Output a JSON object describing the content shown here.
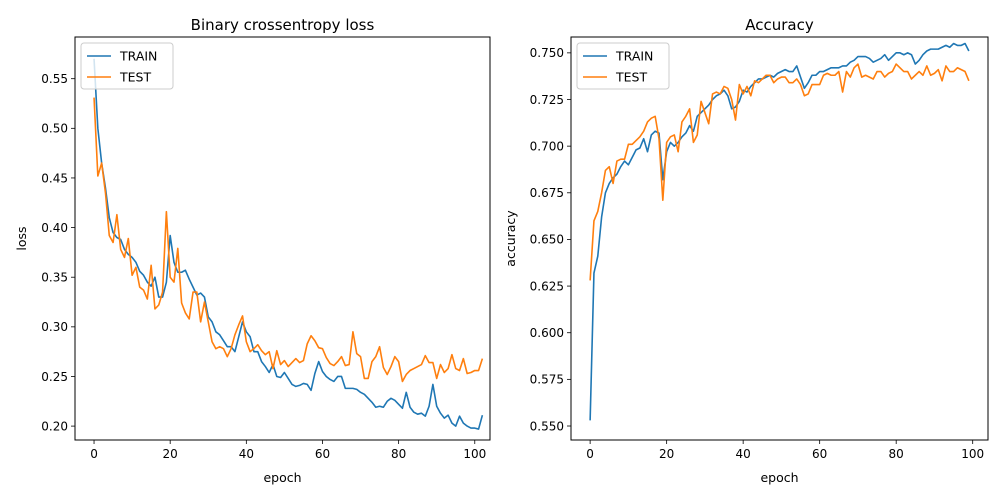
{
  "chart_data": [
    {
      "type": "line",
      "title": "Binary crossentropy loss",
      "xlabel": "epoch",
      "ylabel": "loss",
      "xlim": [
        -5,
        104
      ],
      "ylim": [
        0.186,
        0.592
      ],
      "xticks": [
        0,
        20,
        40,
        60,
        80,
        100
      ],
      "yticks": [
        0.2,
        0.25,
        0.3,
        0.35,
        0.4,
        0.45,
        0.5,
        0.55
      ],
      "ytick_labels": [
        "0.20",
        "0.25",
        "0.30",
        "0.35",
        "0.40",
        "0.45",
        "0.50",
        "0.55"
      ],
      "legend_position": "upper-left",
      "series": [
        {
          "name": "TRAIN",
          "color": "#1f77b4",
          "values": [
            0.57,
            0.5,
            0.465,
            0.44,
            0.41,
            0.395,
            0.39,
            0.388,
            0.378,
            0.373,
            0.37,
            0.365,
            0.356,
            0.352,
            0.345,
            0.341,
            0.35,
            0.33,
            0.33,
            0.345,
            0.392,
            0.365,
            0.355,
            0.355,
            0.357,
            0.348,
            0.34,
            0.332,
            0.334,
            0.33,
            0.31,
            0.305,
            0.295,
            0.292,
            0.286,
            0.28,
            0.28,
            0.275,
            0.29,
            0.305,
            0.295,
            0.29,
            0.275,
            0.275,
            0.265,
            0.26,
            0.254,
            0.262,
            0.25,
            0.249,
            0.254,
            0.248,
            0.242,
            0.24,
            0.241,
            0.243,
            0.242,
            0.236,
            0.253,
            0.265,
            0.255,
            0.25,
            0.247,
            0.245,
            0.25,
            0.25,
            0.238,
            0.238,
            0.238,
            0.237,
            0.234,
            0.232,
            0.228,
            0.224,
            0.219,
            0.22,
            0.219,
            0.225,
            0.228,
            0.226,
            0.222,
            0.218,
            0.234,
            0.219,
            0.214,
            0.212,
            0.213,
            0.21,
            0.22,
            0.242,
            0.22,
            0.213,
            0.208,
            0.211,
            0.203,
            0.2,
            0.21,
            0.203,
            0.2,
            0.198,
            0.198,
            0.197,
            0.211
          ]
        },
        {
          "name": "TEST",
          "color": "#ff7f0e",
          "values": [
            0.531,
            0.452,
            0.465,
            0.435,
            0.392,
            0.385,
            0.413,
            0.378,
            0.37,
            0.389,
            0.352,
            0.36,
            0.34,
            0.337,
            0.328,
            0.362,
            0.318,
            0.322,
            0.335,
            0.416,
            0.35,
            0.345,
            0.379,
            0.324,
            0.314,
            0.308,
            0.335,
            0.335,
            0.305,
            0.325,
            0.305,
            0.285,
            0.278,
            0.28,
            0.278,
            0.27,
            0.278,
            0.292,
            0.302,
            0.311,
            0.285,
            0.275,
            0.278,
            0.282,
            0.276,
            0.272,
            0.275,
            0.258,
            0.276,
            0.262,
            0.266,
            0.26,
            0.264,
            0.268,
            0.264,
            0.266,
            0.283,
            0.291,
            0.286,
            0.279,
            0.278,
            0.269,
            0.263,
            0.261,
            0.265,
            0.27,
            0.261,
            0.262,
            0.295,
            0.273,
            0.27,
            0.248,
            0.248,
            0.265,
            0.27,
            0.28,
            0.259,
            0.252,
            0.26,
            0.27,
            0.265,
            0.245,
            0.252,
            0.256,
            0.258,
            0.26,
            0.262,
            0.271,
            0.264,
            0.264,
            0.248,
            0.262,
            0.254,
            0.258,
            0.272,
            0.258,
            0.256,
            0.268,
            0.253,
            0.254,
            0.256,
            0.256,
            0.268
          ]
        }
      ]
    },
    {
      "type": "line",
      "title": "Accuracy",
      "xlabel": "epoch",
      "ylabel": "accuracy",
      "xlim": [
        -5,
        104
      ],
      "ylim": [
        0.5425,
        0.7585
      ],
      "xticks": [
        0,
        20,
        40,
        60,
        80,
        100
      ],
      "yticks": [
        0.55,
        0.575,
        0.6,
        0.625,
        0.65,
        0.675,
        0.7,
        0.725,
        0.75
      ],
      "ytick_labels": [
        "0.550",
        "0.575",
        "0.600",
        "0.625",
        "0.650",
        "0.675",
        "0.700",
        "0.725",
        "0.750"
      ],
      "legend_position": "upper-left",
      "series": [
        {
          "name": "TRAIN",
          "color": "#1f77b4",
          "values": [
            0.553,
            0.632,
            0.641,
            0.662,
            0.675,
            0.68,
            0.683,
            0.685,
            0.689,
            0.692,
            0.69,
            0.694,
            0.698,
            0.699,
            0.704,
            0.697,
            0.706,
            0.708,
            0.707,
            0.682,
            0.697,
            0.702,
            0.7,
            0.702,
            0.705,
            0.707,
            0.711,
            0.708,
            0.716,
            0.718,
            0.72,
            0.722,
            0.725,
            0.727,
            0.728,
            0.73,
            0.727,
            0.72,
            0.721,
            0.724,
            0.73,
            0.729,
            0.732,
            0.734,
            0.736,
            0.736,
            0.737,
            0.738,
            0.737,
            0.739,
            0.74,
            0.741,
            0.74,
            0.74,
            0.743,
            0.737,
            0.731,
            0.734,
            0.738,
            0.738,
            0.74,
            0.74,
            0.741,
            0.742,
            0.742,
            0.742,
            0.743,
            0.743,
            0.745,
            0.746,
            0.748,
            0.748,
            0.748,
            0.747,
            0.745,
            0.746,
            0.747,
            0.749,
            0.746,
            0.748,
            0.75,
            0.75,
            0.749,
            0.75,
            0.749,
            0.744,
            0.746,
            0.749,
            0.751,
            0.752,
            0.752,
            0.752,
            0.753,
            0.754,
            0.753,
            0.755,
            0.754,
            0.754,
            0.755,
            0.751
          ]
        },
        {
          "name": "TEST",
          "color": "#ff7f0e",
          "values": [
            0.628,
            0.66,
            0.665,
            0.675,
            0.687,
            0.689,
            0.68,
            0.692,
            0.693,
            0.693,
            0.701,
            0.701,
            0.703,
            0.705,
            0.708,
            0.713,
            0.715,
            0.716,
            0.704,
            0.671,
            0.702,
            0.705,
            0.706,
            0.697,
            0.713,
            0.716,
            0.72,
            0.702,
            0.706,
            0.724,
            0.718,
            0.712,
            0.728,
            0.729,
            0.728,
            0.732,
            0.731,
            0.725,
            0.714,
            0.733,
            0.728,
            0.732,
            0.727,
            0.735,
            0.734,
            0.736,
            0.738,
            0.738,
            0.734,
            0.736,
            0.737,
            0.737,
            0.734,
            0.734,
            0.736,
            0.733,
            0.727,
            0.728,
            0.733,
            0.733,
            0.733,
            0.738,
            0.739,
            0.738,
            0.738,
            0.74,
            0.729,
            0.74,
            0.737,
            0.742,
            0.744,
            0.737,
            0.738,
            0.737,
            0.736,
            0.74,
            0.74,
            0.737,
            0.739,
            0.74,
            0.744,
            0.742,
            0.74,
            0.74,
            0.736,
            0.738,
            0.74,
            0.738,
            0.743,
            0.738,
            0.739,
            0.741,
            0.735,
            0.743,
            0.74,
            0.74,
            0.742,
            0.741,
            0.74,
            0.735
          ]
        }
      ]
    }
  ]
}
